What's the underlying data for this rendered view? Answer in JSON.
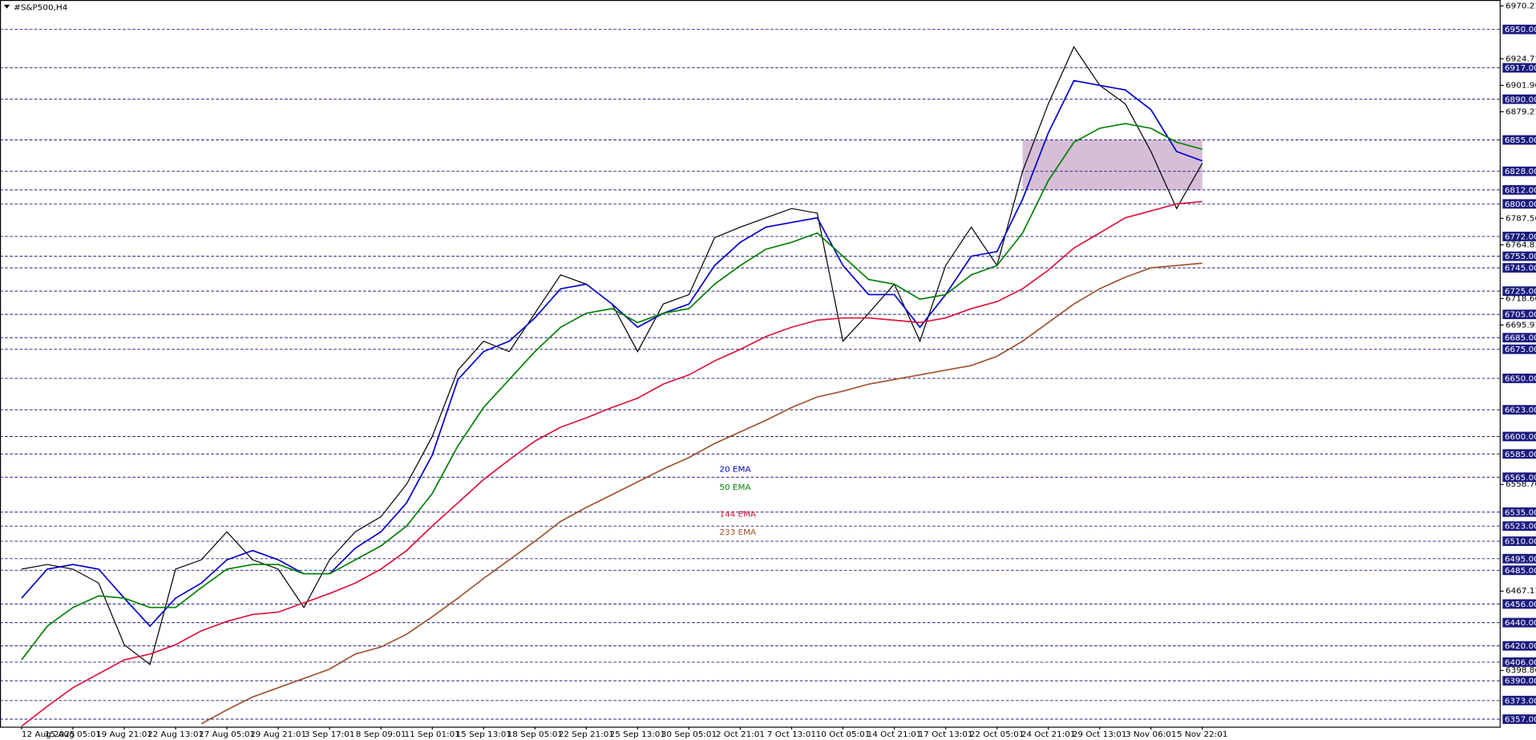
{
  "chart_data": {
    "type": "line",
    "title": "#S&P500,H4",
    "categories": [
      "12 Aug 2025",
      null,
      "15 Aug 05:01",
      null,
      "19 Aug 21:01",
      null,
      "22 Aug 13:01",
      null,
      "27 Aug 05:01",
      null,
      "29 Aug 21:01",
      null,
      "3 Sep 17:01",
      null,
      "8 Sep 09:01",
      null,
      "11 Sep 01:01",
      null,
      "15 Sep 13:01",
      null,
      "18 Sep 05:01",
      null,
      "22 Sep 21:01",
      null,
      "25 Sep 13:01",
      null,
      "30 Sep 05:01",
      null,
      "2 Oct 21:01",
      null,
      "7 Oct 13:01",
      null,
      "10 Oct 05:01",
      null,
      "14 Oct 21:01",
      null,
      "17 Oct 13:01",
      null,
      "22 Oct 05:01",
      null,
      "24 Oct 21:01",
      null,
      "29 Oct 13:01",
      null,
      "3 Nov 06:01",
      null,
      "5 Nov 22:01"
    ],
    "series": [
      {
        "color": "#000000",
        "values": [
          6486,
          6490,
          6486,
          6474,
          6421,
          6404,
          6486,
          6494,
          6518,
          6494,
          6486,
          6453,
          6494,
          6518,
          6531,
          6559,
          6600,
          6657,
          6682,
          6673,
          6706,
          6739,
          6731,
          6714,
          6673,
          6714,
          6722,
          6771,
          6780,
          6788,
          6796,
          6792,
          6682,
          6706,
          6731,
          6682,
          6747,
          6780,
          6747,
          6828,
          6886,
          6935,
          6902,
          6886,
          6845,
          6796,
          6835
        ]
      },
      {
        "name": "20 EMA",
        "color": "#0000cc",
        "values": [
          6461,
          6486,
          6490,
          6486,
          6461,
          6437,
          6461,
          6474,
          6494,
          6502,
          6494,
          6482,
          6482,
          6504,
          6518,
          6543,
          6584,
          6649,
          6673,
          6682,
          6702,
          6727,
          6731,
          6714,
          6694,
          6706,
          6714,
          6747,
          6767,
          6780,
          6784,
          6788,
          6747,
          6722,
          6722,
          6694,
          6722,
          6755,
          6759,
          6804,
          6861,
          6906,
          6902,
          6898,
          6881,
          6845,
          6837
        ]
      },
      {
        "name": "50 EMA",
        "color": "#008000",
        "values": [
          6408,
          6437,
          6453,
          6463,
          6461,
          6453,
          6453,
          6470,
          6486,
          6490,
          6490,
          6482,
          6482,
          6494,
          6506,
          6523,
          6551,
          6592,
          6625,
          6649,
          6673,
          6694,
          6706,
          6710,
          6698,
          6706,
          6710,
          6731,
          6747,
          6761,
          6767,
          6775,
          6755,
          6735,
          6731,
          6718,
          6722,
          6739,
          6747,
          6775,
          6820,
          6853,
          6865,
          6869,
          6865,
          6853,
          6847
        ]
      },
      {
        "name": "144 EMA",
        "color": "#dc143c",
        "values": [
          6351,
          6368,
          6384,
          6396,
          6408,
          6413,
          6421,
          6433,
          6441,
          6447,
          6449,
          6457,
          6465,
          6474,
          6486,
          6502,
          6523,
          6543,
          6563,
          6580,
          6596,
          6608,
          6616,
          6625,
          6633,
          6645,
          6653,
          6665,
          6675,
          6686,
          6694,
          6700,
          6702,
          6702,
          6700,
          6698,
          6702,
          6710,
          6716,
          6727,
          6743,
          6762,
          6775,
          6788,
          6794,
          6800,
          6802
        ]
      },
      {
        "name": "233 EMA",
        "color": "#a0522d",
        "values": [
          null,
          null,
          null,
          null,
          null,
          null,
          null,
          6353,
          6365,
          6376,
          6384,
          6392,
          6400,
          6413,
          6419,
          6430,
          6445,
          6461,
          6478,
          6494,
          6510,
          6527,
          6539,
          6550,
          6561,
          6572,
          6582,
          6594,
          6604,
          6614,
          6625,
          6634,
          6639,
          6645,
          6649,
          6653,
          6657,
          6661,
          6669,
          6682,
          6698,
          6714,
          6727,
          6737,
          6745,
          6747,
          6749
        ]
      }
    ],
    "ylim": [
      6350.5,
      6975.3
    ],
    "yticks": [
      6970.21,
      6924.71,
      6901.96,
      6879.21,
      6787.56,
      6764.81,
      6718.66,
      6695.91,
      6558.76,
      6467.11,
      6398.86
    ],
    "levels": [
      {
        "value": 6950,
        "label": "6950.00"
      },
      {
        "value": 6917,
        "label": "6917.00"
      },
      {
        "value": 6890,
        "label": "6890.00"
      },
      {
        "value": 6855,
        "label": "6855.00"
      },
      {
        "value": 6828,
        "label": "6828.00"
      },
      {
        "value": 6812,
        "label": "6812.00"
      },
      {
        "value": 6800,
        "label": "6800.00"
      },
      {
        "value": 6772,
        "label": "6772.00"
      },
      {
        "value": 6755,
        "label": "6755.00"
      },
      {
        "value": 6745,
        "label": "6745.00"
      },
      {
        "value": 6725,
        "label": "6725.00"
      },
      {
        "value": 6705,
        "label": "6705.00"
      },
      {
        "value": 6685,
        "label": "6685.00"
      },
      {
        "value": 6675,
        "label": "6675.00"
      },
      {
        "value": 6650,
        "label": "6650.00"
      },
      {
        "value": 6623,
        "label": "6623.00"
      },
      {
        "value": 6600,
        "label": "6600.00"
      },
      {
        "value": 6585,
        "label": "6585.00"
      },
      {
        "value": 6565,
        "label": "6565.00"
      },
      {
        "value": 6535,
        "label": "6535.00"
      },
      {
        "value": 6523,
        "label": "6523.00"
      },
      {
        "value": 6510,
        "label": "6510.00"
      },
      {
        "value": 6495,
        "label": "6495.00"
      },
      {
        "value": 6485,
        "label": "6485.00"
      },
      {
        "value": 6456,
        "label": "6456.00"
      },
      {
        "value": 6440,
        "label": "6440.00"
      },
      {
        "value": 6420,
        "label": "6420.00"
      },
      {
        "value": 6406,
        "label": "6406.00"
      },
      {
        "value": 6390,
        "label": "6390.00"
      },
      {
        "value": 6373,
        "label": "6373.00"
      },
      {
        "value": 6357,
        "label": "6357.00"
      }
    ],
    "level_color": "#1a1a80",
    "zone": {
      "low": 6812,
      "high": 6855,
      "from": 39,
      "to": 46,
      "color": "#c8a8c8"
    }
  }
}
